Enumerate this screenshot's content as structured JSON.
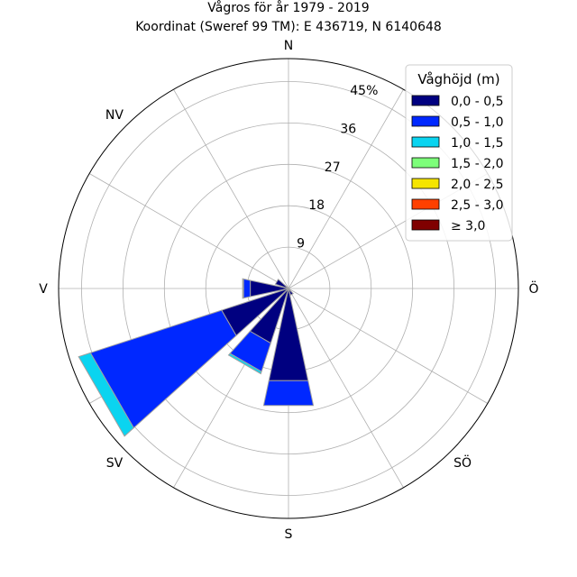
{
  "chart_data": {
    "type": "windrose",
    "title": "Vågros för år 1979 - 2019",
    "subtitle": "Koordinat (Sweref 99 TM): E 436719, N 6140648",
    "directions": [
      "N",
      "NV",
      "V",
      "SV",
      "S",
      "SÖ",
      "Ö"
    ],
    "sector_angles_deg": [
      0,
      30,
      60,
      90,
      120,
      150,
      180,
      210,
      240,
      270,
      300,
      330
    ],
    "radial_ticks": [
      "9",
      "18",
      "27",
      "36",
      "45%"
    ],
    "radial_max": 50,
    "legend": {
      "title": "Våghöjd (m)",
      "position": "top-right",
      "entries": [
        {
          "label": "0,0 - 0,5",
          "color": "#000080"
        },
        {
          "label": "0,5 - 1,0",
          "color": "#0028ff"
        },
        {
          "label": "1,0 - 1,5",
          "color": "#0ad4f0"
        },
        {
          "label": "1,5 - 2,0",
          "color": "#7dff7a"
        },
        {
          "label": "2,0 - 2,5",
          "color": "#f5e500"
        },
        {
          "label": "2,5 - 3,0",
          "color": "#ff4000"
        },
        {
          "label": "≥ 3,0",
          "color": "#800000"
        }
      ]
    },
    "series": [
      {
        "direction_deg": 150,
        "values": [
          1.5
        ]
      },
      {
        "direction_deg": 180,
        "values": [
          20.5,
          5.5
        ]
      },
      {
        "direction_deg": 210,
        "values": [
          12.5,
          6.5,
          0.5
        ]
      },
      {
        "direction_deg": 240,
        "values": [
          15.3,
          30.0,
          2.7
        ]
      },
      {
        "direction_deg": 270,
        "values": [
          8.5,
          1.5,
          0.2
        ]
      },
      {
        "direction_deg": 300,
        "values": [
          3.0
        ]
      }
    ],
    "grid": true
  }
}
